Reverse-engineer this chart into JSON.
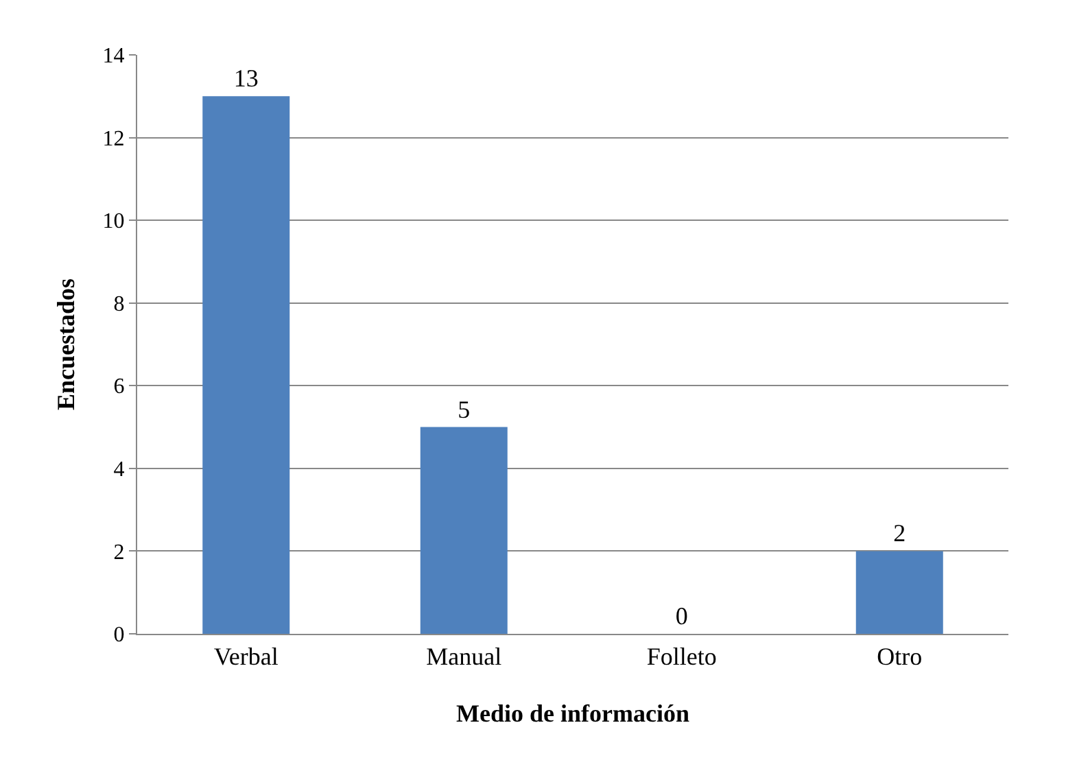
{
  "chart_data": {
    "type": "bar",
    "xlabel": "Medio de información",
    "ylabel": "Encuestados",
    "categories": [
      "Verbal",
      "Manual",
      "Folleto",
      "Otro"
    ],
    "values": [
      13,
      5,
      0,
      2
    ],
    "color": "#4f81bd",
    "ylim": [
      0,
      14
    ],
    "yticks": [
      0,
      2,
      4,
      6,
      8,
      10,
      12,
      14
    ],
    "grid": "y",
    "data_labels": true
  }
}
